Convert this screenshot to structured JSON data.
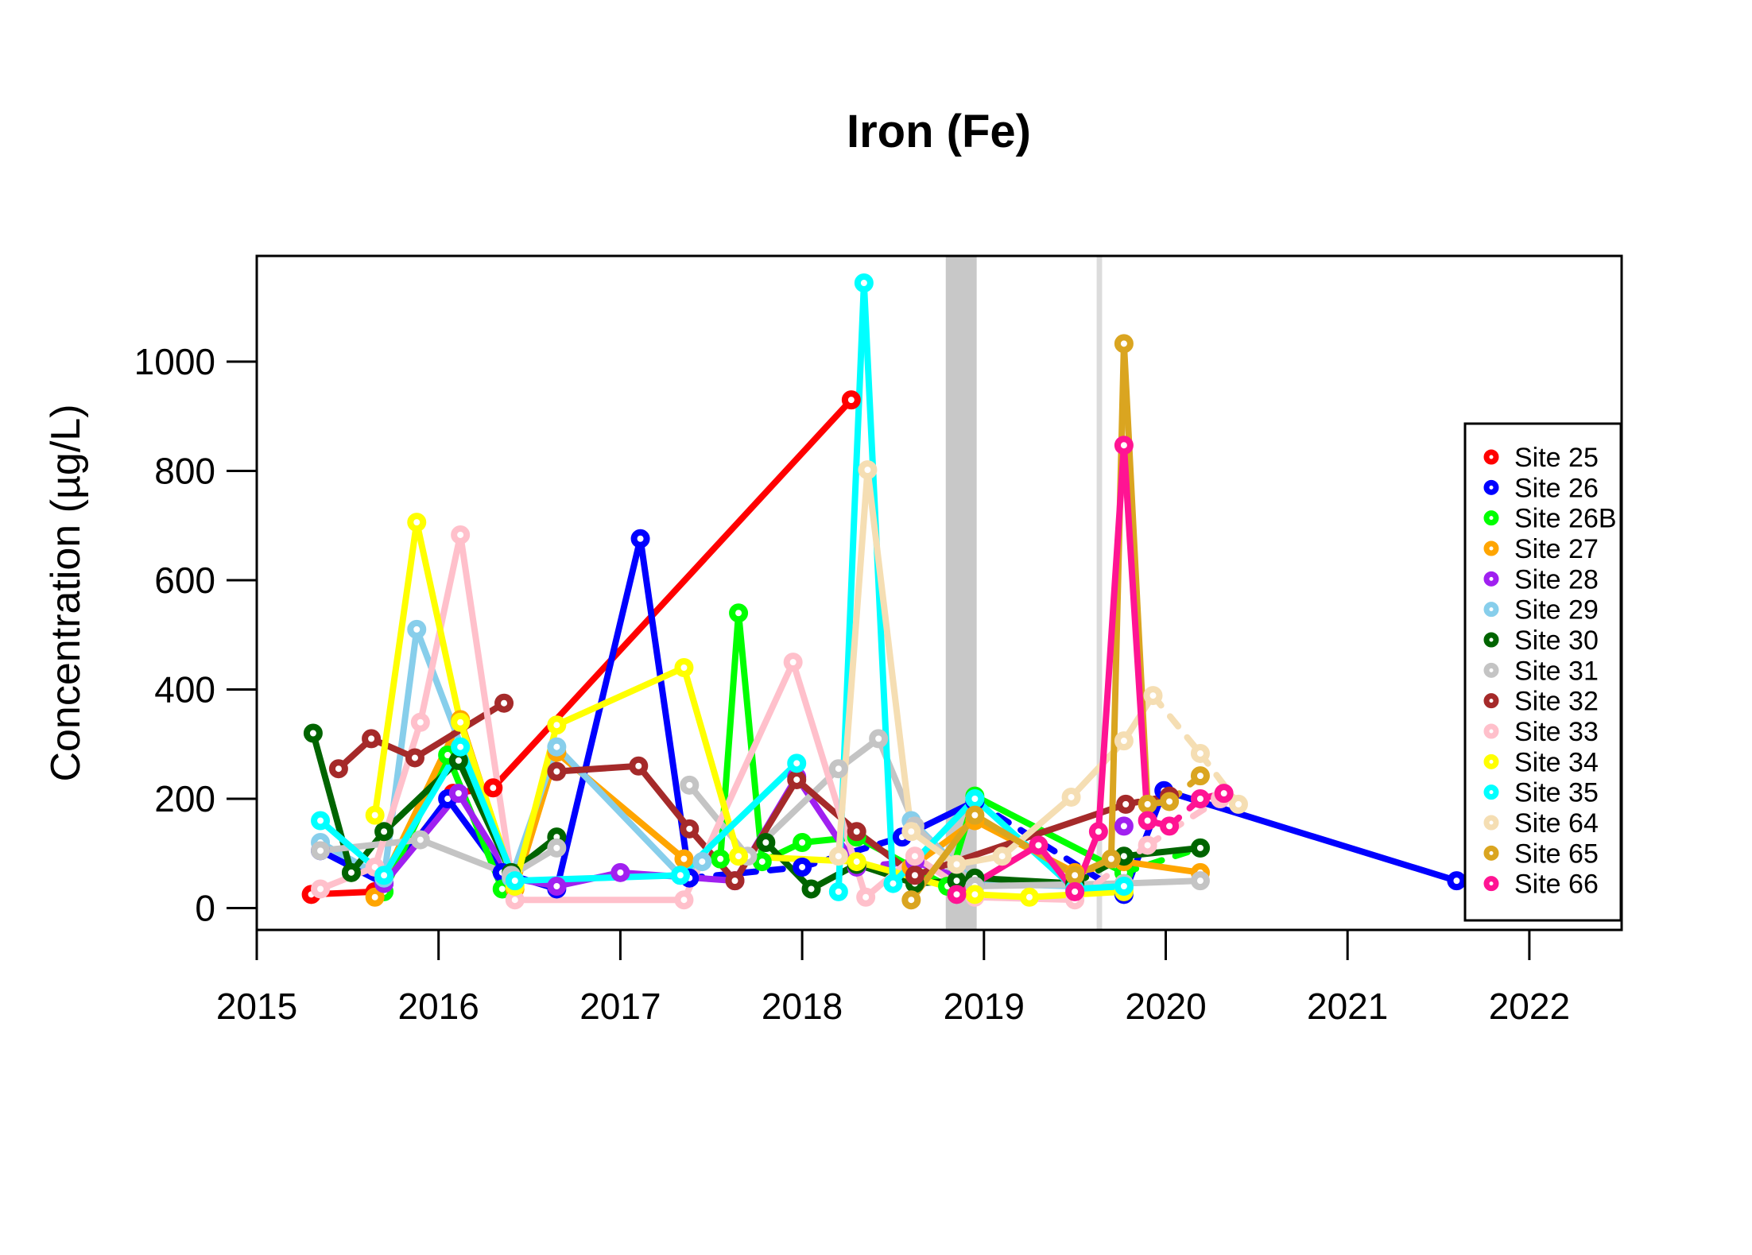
{
  "title": "Iron (Fe)",
  "y_axis": {
    "label": "Concentration (µg/L)",
    "tick_labels": [
      "0",
      "200",
      "400",
      "600",
      "800",
      "1000"
    ],
    "tick_values": [
      0,
      200,
      400,
      600,
      800,
      1000
    ]
  },
  "x_axis": {
    "tick_labels": [
      "2015",
      "2016",
      "2017",
      "2018",
      "2019",
      "2020",
      "2021",
      "2022"
    ],
    "tick_values": [
      2015,
      2016,
      2017,
      2018,
      2019,
      2020,
      2021,
      2022
    ]
  },
  "chart_data": {
    "type": "line",
    "title": "Iron (Fe)",
    "xlabel": "",
    "ylabel": "Concentration (µg/L)",
    "x_range": [
      2015,
      2022.5
    ],
    "y_range": [
      -40,
      1190
    ],
    "grid": false,
    "legend_position": "right",
    "marker": "open-circle",
    "highlight_bands": [
      {
        "x1": 2018.79,
        "x2": 2018.96,
        "color": "#C8C8C8"
      },
      {
        "x1": 2019.62,
        "x2": 2019.65,
        "color": "#DCDCDC"
      }
    ],
    "series": [
      {
        "name": "Site 25",
        "color": "#FF0000",
        "points": [
          [
            2015.3,
            25
          ],
          [
            2015.65,
            30
          ],
          [
            2016.08,
            210
          ],
          [
            2016.3,
            220
          ],
          [
            2018.27,
            930
          ]
        ],
        "skip_segments": [],
        "dashed_segments": []
      },
      {
        "name": "Site 26",
        "color": "#0000FF",
        "points": [
          [
            2015.35,
            105
          ],
          [
            2015.7,
            45
          ],
          [
            2016.05,
            200
          ],
          [
            2016.35,
            65
          ],
          [
            2016.65,
            35
          ],
          [
            2017.11,
            676
          ],
          [
            2017.38,
            55
          ],
          [
            2018.0,
            75
          ],
          [
            2018.55,
            130
          ],
          [
            2018.95,
            195
          ],
          [
            2019.77,
            25
          ],
          [
            2019.99,
            215
          ],
          [
            2021.6,
            50
          ]
        ],
        "skip_segments": [],
        "dashed_segments": [
          6,
          7,
          9
        ]
      },
      {
        "name": "Site 26B",
        "color": "#00FF00",
        "points": [
          [
            2015.7,
            30
          ],
          [
            2016.05,
            280
          ],
          [
            2016.35,
            35
          ],
          [
            2017.55,
            90
          ],
          [
            2017.65,
            540
          ],
          [
            2017.78,
            85
          ],
          [
            2018.0,
            120
          ],
          [
            2018.3,
            130
          ],
          [
            2018.8,
            40
          ],
          [
            2018.95,
            205
          ],
          [
            2019.77,
            65
          ],
          [
            2020.19,
            110
          ]
        ],
        "skip_segments": [
          2
        ],
        "dashed_segments": [
          10
        ]
      },
      {
        "name": "Site 27",
        "color": "#FFA500",
        "points": [
          [
            2015.65,
            20
          ],
          [
            2016.12,
            345
          ],
          [
            2016.42,
            35
          ],
          [
            2016.65,
            285
          ],
          [
            2017.35,
            90
          ],
          [
            2018.6,
            75
          ],
          [
            2018.95,
            160
          ],
          [
            2019.5,
            65
          ],
          [
            2019.77,
            85
          ],
          [
            2020.19,
            65
          ]
        ],
        "skip_segments": [
          4
        ],
        "dashed_segments": []
      },
      {
        "name": "Site 28",
        "color": "#A020F0",
        "points": [
          [
            2015.7,
            45
          ],
          [
            2016.11,
            210
          ],
          [
            2016.4,
            55
          ],
          [
            2016.65,
            40
          ],
          [
            2017.0,
            65
          ],
          [
            2017.63,
            50
          ],
          [
            2017.97,
            240
          ],
          [
            2018.3,
            75
          ],
          [
            2018.62,
            85
          ],
          [
            2018.95,
            45
          ],
          [
            2019.77,
            150
          ]
        ],
        "skip_segments": [
          9
        ],
        "dashed_segments": [
          7
        ]
      },
      {
        "name": "Site 29",
        "color": "#87CEEB",
        "points": [
          [
            2015.35,
            120
          ],
          [
            2015.7,
            55
          ],
          [
            2015.88,
            510
          ],
          [
            2016.4,
            55
          ],
          [
            2016.65,
            295
          ],
          [
            2017.33,
            60
          ],
          [
            2017.45,
            85
          ],
          [
            2018.6,
            160
          ],
          [
            2018.95,
            45
          ],
          [
            2019.5,
            40
          ],
          [
            2019.77,
            35
          ]
        ],
        "skip_segments": [
          6
        ],
        "dashed_segments": []
      },
      {
        "name": "Site 30",
        "color": "#006400",
        "points": [
          [
            2015.31,
            320
          ],
          [
            2015.52,
            65
          ],
          [
            2015.7,
            140
          ],
          [
            2016.11,
            270
          ],
          [
            2016.4,
            65
          ],
          [
            2016.65,
            130
          ],
          [
            2017.8,
            120
          ],
          [
            2018.05,
            35
          ],
          [
            2018.3,
            80
          ],
          [
            2018.62,
            45
          ],
          [
            2018.85,
            50
          ],
          [
            2018.95,
            55
          ],
          [
            2019.5,
            45
          ],
          [
            2019.77,
            95
          ],
          [
            2020.19,
            110
          ]
        ],
        "skip_segments": [
          5
        ],
        "dashed_segments": [
          12
        ]
      },
      {
        "name": "Site 31",
        "color": "#C4C4C4",
        "points": [
          [
            2015.35,
            105
          ],
          [
            2015.9,
            125
          ],
          [
            2016.4,
            60
          ],
          [
            2016.65,
            110
          ],
          [
            2017.38,
            225
          ],
          [
            2017.7,
            95
          ],
          [
            2018.2,
            255
          ],
          [
            2018.42,
            310
          ],
          [
            2018.62,
            150
          ],
          [
            2018.95,
            40
          ],
          [
            2019.77,
            45
          ],
          [
            2020.19,
            50
          ]
        ],
        "skip_segments": [
          3
        ],
        "dashed_segments": []
      },
      {
        "name": "Site 32",
        "color": "#A52A2A",
        "points": [
          [
            2015.45,
            255
          ],
          [
            2015.63,
            310
          ],
          [
            2015.87,
            275
          ],
          [
            2016.36,
            375
          ],
          [
            2016.65,
            250
          ],
          [
            2017.1,
            260
          ],
          [
            2017.38,
            145
          ],
          [
            2017.63,
            50
          ],
          [
            2017.97,
            235
          ],
          [
            2018.3,
            140
          ],
          [
            2018.62,
            60
          ],
          [
            2019.78,
            190
          ],
          [
            2020.02,
            205
          ]
        ],
        "skip_segments": [
          3
        ],
        "dashed_segments": [
          11
        ]
      },
      {
        "name": "Site 33",
        "color": "#FFC0CB",
        "points": [
          [
            2015.35,
            35
          ],
          [
            2015.65,
            75
          ],
          [
            2015.9,
            340
          ],
          [
            2016.12,
            683
          ],
          [
            2016.42,
            15
          ],
          [
            2017.35,
            15
          ],
          [
            2017.95,
            450
          ],
          [
            2018.35,
            20
          ],
          [
            2018.62,
            95
          ],
          [
            2018.95,
            20
          ],
          [
            2019.5,
            15
          ],
          [
            2019.9,
            115
          ],
          [
            2020.3,
            200
          ]
        ],
        "skip_segments": [],
        "dashed_segments": [
          10,
          11
        ]
      },
      {
        "name": "Site 34",
        "color": "#FFFF00",
        "points": [
          [
            2015.65,
            170
          ],
          [
            2015.88,
            706
          ],
          [
            2016.12,
            340
          ],
          [
            2016.42,
            40
          ],
          [
            2016.65,
            335
          ],
          [
            2017.35,
            440
          ],
          [
            2017.65,
            95
          ],
          [
            2018.3,
            85
          ],
          [
            2018.95,
            25
          ],
          [
            2019.25,
            20
          ],
          [
            2019.77,
            30
          ]
        ],
        "skip_segments": [],
        "dashed_segments": []
      },
      {
        "name": "Site 35",
        "color": "#00FFFF",
        "points": [
          [
            2015.35,
            160
          ],
          [
            2015.7,
            60
          ],
          [
            2016.12,
            295
          ],
          [
            2016.42,
            50
          ],
          [
            2017.33,
            60
          ],
          [
            2017.97,
            265
          ],
          [
            2018.2,
            30
          ],
          [
            2018.34,
            1144
          ],
          [
            2018.5,
            45
          ],
          [
            2018.95,
            200
          ],
          [
            2019.5,
            35
          ],
          [
            2019.77,
            40
          ]
        ],
        "skip_segments": [
          5
        ],
        "dashed_segments": []
      },
      {
        "name": "Site 64",
        "color": "#F5DEB3",
        "points": [
          [
            2018.2,
            95
          ],
          [
            2018.36,
            802
          ],
          [
            2018.6,
            140
          ],
          [
            2018.85,
            80
          ],
          [
            2019.1,
            95
          ],
          [
            2019.48,
            203
          ],
          [
            2019.77,
            306
          ],
          [
            2019.93,
            389
          ],
          [
            2020.19,
            283
          ],
          [
            2020.4,
            190
          ]
        ],
        "skip_segments": [],
        "dashed_segments": [
          7,
          8
        ]
      },
      {
        "name": "Site 65",
        "color": "#DAA520",
        "points": [
          [
            2018.6,
            15
          ],
          [
            2018.95,
            170
          ],
          [
            2019.5,
            60
          ],
          [
            2019.7,
            90
          ],
          [
            2019.77,
            1033
          ],
          [
            2019.9,
            190
          ],
          [
            2020.02,
            195
          ],
          [
            2020.19,
            242
          ]
        ],
        "skip_segments": [],
        "dashed_segments": [
          5,
          6
        ]
      },
      {
        "name": "Site 66",
        "color": "#FF1493",
        "points": [
          [
            2018.85,
            25
          ],
          [
            2019.3,
            115
          ],
          [
            2019.5,
            30
          ],
          [
            2019.63,
            140
          ],
          [
            2019.77,
            847
          ],
          [
            2019.9,
            160
          ],
          [
            2020.02,
            150
          ],
          [
            2020.19,
            200
          ],
          [
            2020.32,
            210
          ]
        ],
        "skip_segments": [],
        "dashed_segments": [
          5,
          6,
          7
        ]
      }
    ]
  },
  "legend": {
    "labels": [
      "Site 25",
      "Site 26",
      "Site 26B",
      "Site 27",
      "Site 28",
      "Site 29",
      "Site 30",
      "Site 31",
      "Site 32",
      "Site 33",
      "Site 34",
      "Site 35",
      "Site 64",
      "Site 65",
      "Site 66"
    ]
  },
  "colors": {
    "axis": "#000000",
    "background": "#FFFFFF"
  }
}
